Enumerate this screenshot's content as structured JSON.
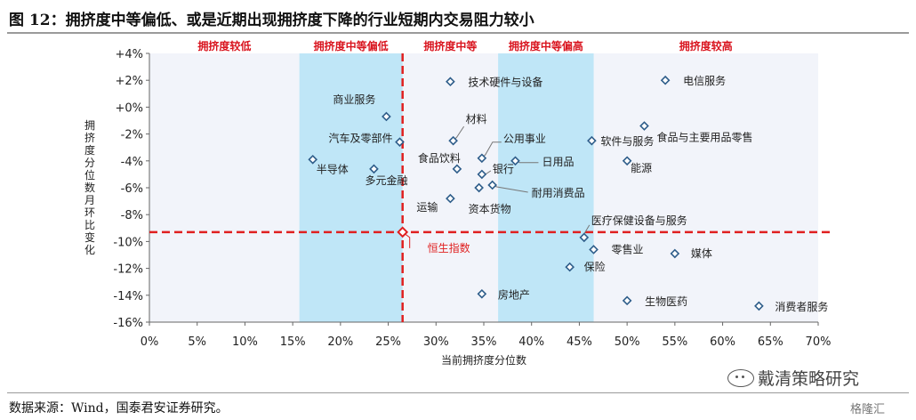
{
  "header": {
    "title": "图 12：拥挤度中等偏低、或是近期出现拥挤度下降的行业短期内交易阻力较小"
  },
  "footer": {
    "source": "数据来源：Wind，国泰君安证券研究。",
    "watermark": "戴清策略研究",
    "corner_mark": "格隆汇"
  },
  "chart_data": {
    "type": "scatter",
    "title": "",
    "xlabel": "当前拥挤度分位数",
    "ylabel": "拥挤度分位数月环比变化",
    "xlim": [
      0,
      70
    ],
    "ylim": [
      -16,
      4
    ],
    "xticks": [
      0,
      5,
      10,
      15,
      20,
      25,
      30,
      35,
      40,
      45,
      50,
      55,
      60,
      65,
      70
    ],
    "xtick_labels": [
      "0%",
      "5%",
      "10%",
      "15%",
      "20%",
      "25%",
      "30%",
      "35%",
      "40%",
      "45%",
      "50%",
      "55%",
      "60%",
      "65%",
      "70%"
    ],
    "yticks": [
      4,
      2,
      0,
      -2,
      -4,
      -6,
      -8,
      -10,
      -12,
      -14,
      -16
    ],
    "ytick_labels": [
      "+4%",
      "+2%",
      "+0%",
      "-2%",
      "-4%",
      "-6%",
      "-8%",
      "-10%",
      "-12%",
      "-14%",
      "-16%"
    ],
    "grid": false,
    "colors": {
      "plot_bg": "#f2f4fa",
      "band": "#bfe6f7",
      "point": "#2e5d8a",
      "reference": "#e02020",
      "zone_text": "#d9141e"
    },
    "zones": [
      {
        "label": "拥挤度较低",
        "x_from": 0,
        "x_to": 15.7,
        "shaded": false
      },
      {
        "label": "拥挤度中等偏低",
        "x_from": 15.7,
        "x_to": 26.5,
        "shaded": true
      },
      {
        "label": "拥挤度中等",
        "x_from": 26.5,
        "x_to": 36.5,
        "shaded": false
      },
      {
        "label": "拥挤度中等偏高",
        "x_from": 36.5,
        "x_to": 46.5,
        "shaded": true
      },
      {
        "label": "拥挤度较高",
        "x_from": 46.5,
        "x_to": 70,
        "shaded": false
      }
    ],
    "reference": {
      "name": "恒生指数",
      "x": 26.5,
      "y": -9.3
    },
    "points": [
      {
        "name": "技术硬件与设备",
        "x": 31.5,
        "y": 1.9
      },
      {
        "name": "电信服务",
        "x": 54.0,
        "y": 2.0
      },
      {
        "name": "商业服务",
        "x": 24.8,
        "y": -0.7
      },
      {
        "name": "食品与主要用品零售",
        "x": 51.8,
        "y": -1.4
      },
      {
        "name": "材料",
        "x": 31.8,
        "y": -2.5
      },
      {
        "name": "汽车及零部件",
        "x": 26.2,
        "y": -2.6
      },
      {
        "name": "公用事业",
        "x": 34.8,
        "y": -3.8
      },
      {
        "name": "软件与服务",
        "x": 46.3,
        "y": -2.5
      },
      {
        "name": "食品饮料",
        "x": 32.2,
        "y": -4.6
      },
      {
        "name": "日用品",
        "x": 38.3,
        "y": -4.0
      },
      {
        "name": "能源",
        "x": 50.0,
        "y": -4.0
      },
      {
        "name": "半导体",
        "x": 17.1,
        "y": -3.9
      },
      {
        "name": "多元金融",
        "x": 23.5,
        "y": -4.6
      },
      {
        "name": "银行",
        "x": 34.8,
        "y": -5.0
      },
      {
        "name": "耐用消费品",
        "x": 35.9,
        "y": -5.8
      },
      {
        "name": "资本货物",
        "x": 34.5,
        "y": -6.0
      },
      {
        "name": "运输",
        "x": 31.5,
        "y": -6.8
      },
      {
        "name": "医疗保健设备与服务",
        "x": 45.5,
        "y": -9.7
      },
      {
        "name": "零售业",
        "x": 46.5,
        "y": -10.6
      },
      {
        "name": "媒体",
        "x": 55.0,
        "y": -10.9
      },
      {
        "name": "保险",
        "x": 44.0,
        "y": -11.9
      },
      {
        "name": "房地产",
        "x": 34.8,
        "y": -13.9
      },
      {
        "name": "生物医药",
        "x": 50.0,
        "y": -14.4
      },
      {
        "name": "消费者服务",
        "x": 63.8,
        "y": -14.8
      }
    ]
  }
}
